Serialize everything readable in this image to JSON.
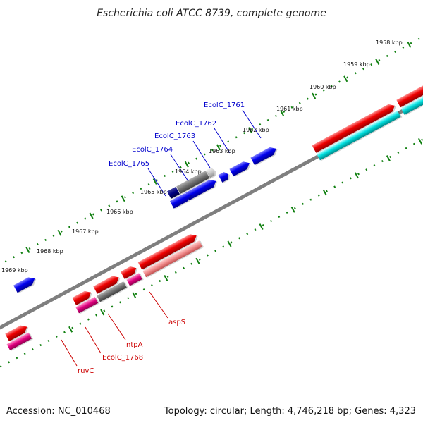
{
  "title": "Escherichia coli ATCC 8739, complete genome",
  "footer": {
    "accession": "Accession: NC_010468",
    "summary": "Topology: circular; Length: 4,746,218 bp; Genes: 4,323"
  },
  "colors": {
    "backbone": "#7f7f7f",
    "tick": "#118011",
    "blue_gene": "#0000ee",
    "navy_gene": "#000080",
    "gray_gene": "#707070",
    "light_gray_gene": "#c8c8c8",
    "red_gene": "#ee0000",
    "pink_gene": "#f08080",
    "magenta_gene": "#e0007f",
    "cyan_gene": "#00dddd",
    "blue_label": "#0000cc",
    "red_label": "#cc0000"
  },
  "ticks": [
    {
      "label": "1958 kbp"
    },
    {
      "label": "1959 kbp"
    },
    {
      "label": "1960 kbp"
    },
    {
      "label": "1961 kbp"
    },
    {
      "label": "1962 kbp"
    },
    {
      "label": "1963 kbp"
    },
    {
      "label": "1964 kbp"
    },
    {
      "label": "1965 kbp"
    },
    {
      "label": "1966 kbp"
    },
    {
      "label": "1967 kbp"
    },
    {
      "label": "1968 kbp"
    },
    {
      "label": "1969 kbp"
    }
  ],
  "gene_labels": [
    {
      "name": "EcolC_1761"
    },
    {
      "name": "EcolC_1762"
    },
    {
      "name": "EcolC_1763"
    },
    {
      "name": "EcolC_1764"
    },
    {
      "name": "EcolC_1765"
    },
    {
      "name": "aspS"
    },
    {
      "name": "ntpA"
    },
    {
      "name": "EcolC_1768"
    },
    {
      "name": "ruvC"
    }
  ]
}
